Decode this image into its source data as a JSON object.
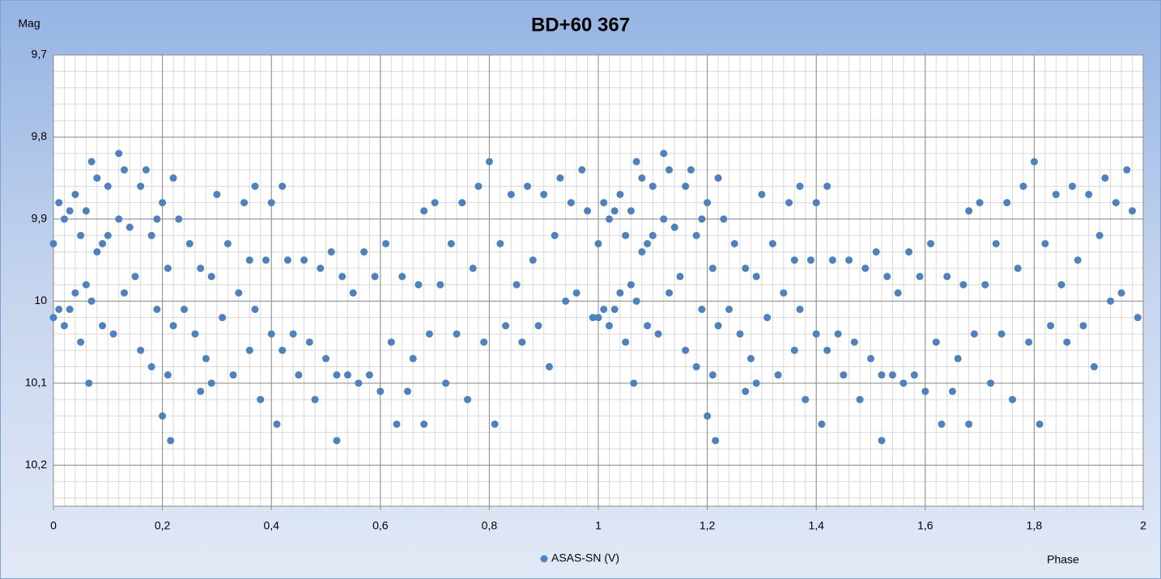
{
  "chart_data": {
    "type": "scatter",
    "title": "BD+60 367",
    "y_label": "Mag",
    "x_label": "Phase",
    "xlim": [
      0,
      2
    ],
    "ylim": [
      9.7,
      10.25
    ],
    "y_inverted": true,
    "xticks": [
      0,
      {
        "value": 0.2,
        "label": "0,2"
      },
      {
        "value": 0.4,
        "label": "0,4"
      },
      {
        "value": 0.6,
        "label": "0,6"
      },
      {
        "value": 0.8,
        "label": "0,8"
      },
      1,
      {
        "value": 1.2,
        "label": "1,2"
      },
      {
        "value": 1.4,
        "label": "1,4"
      },
      {
        "value": 1.6,
        "label": "1,6"
      },
      {
        "value": 1.8,
        "label": "1,8"
      },
      2
    ],
    "yticks": [
      {
        "value": 9.7,
        "label": "9,7"
      },
      {
        "value": 9.8,
        "label": "9,8"
      },
      {
        "value": 9.9,
        "label": "9,9"
      },
      10,
      {
        "value": 10.1,
        "label": "10,1"
      },
      {
        "value": 10.2,
        "label": "10,2"
      }
    ],
    "grid": true,
    "minor_grid": {
      "x": 0.02,
      "y": 0.02
    },
    "legend": "bottom",
    "series": [
      {
        "name": "ASAS-SN (V)",
        "color": "#4f81bd",
        "x": [
          0,
          0,
          0.01,
          0.01,
          0.02,
          0.02,
          0.03,
          0.03,
          0.04,
          0.04,
          0.05,
          0.05,
          0.06,
          0.06,
          0.065,
          0.07,
          0.07,
          0.08,
          0.08,
          0.09,
          0.09,
          0.1,
          0.1,
          0.11,
          0.12,
          0.12,
          0.13,
          0.13,
          0.14,
          0.15,
          0.16,
          0.16,
          0.17,
          0.18,
          0.18,
          0.19,
          0.19,
          0.2,
          0.2,
          0.21,
          0.21,
          0.215,
          0.22,
          0.22,
          0.23,
          0.24,
          0.25,
          0.26,
          0.27,
          0.27,
          0.28,
          0.29,
          0.29,
          0.3,
          0.31,
          0.32,
          0.33,
          0.34,
          0.35,
          0.36,
          0.36,
          0.37,
          0.37,
          0.38,
          0.39,
          0.4,
          0.4,
          0.41,
          0.42,
          0.42,
          0.43,
          0.44,
          0.45,
          0.46,
          0.47,
          0.48,
          0.49,
          0.5,
          0.51,
          0.52,
          0.52,
          0.53,
          0.54,
          0.55,
          0.56,
          0.57,
          0.58,
          0.59,
          0.6,
          0.61,
          0.62,
          0.63,
          0.64,
          0.65,
          0.66,
          0.67,
          0.68,
          0.68,
          0.69,
          0.7,
          0.71,
          0.72,
          0.73,
          0.74,
          0.75,
          0.76,
          0.77,
          0.78,
          0.79,
          0.8,
          0.81,
          0.82,
          0.83,
          0.84,
          0.85,
          0.86,
          0.87,
          0.88,
          0.89,
          0.9,
          0.91,
          0.92,
          0.93,
          0.94,
          0.95,
          0.96,
          0.97,
          0.98,
          0.99,
          1,
          1,
          1.01,
          1.01,
          1.02,
          1.02,
          1.03,
          1.03,
          1.04,
          1.04,
          1.05,
          1.05,
          1.06,
          1.06,
          1.065,
          1.07,
          1.07,
          1.08,
          1.08,
          1.09,
          1.09,
          1.1,
          1.1,
          1.11,
          1.12,
          1.12,
          1.13,
          1.13,
          1.14,
          1.15,
          1.16,
          1.16,
          1.17,
          1.18,
          1.18,
          1.19,
          1.19,
          1.2,
          1.2,
          1.21,
          1.21,
          1.215,
          1.22,
          1.22,
          1.23,
          1.24,
          1.25,
          1.26,
          1.27,
          1.27,
          1.28,
          1.29,
          1.29,
          1.3,
          1.31,
          1.32,
          1.33,
          1.34,
          1.35,
          1.36,
          1.36,
          1.37,
          1.37,
          1.38,
          1.39,
          1.4,
          1.4,
          1.41,
          1.42,
          1.42,
          1.43,
          1.44,
          1.45,
          1.46,
          1.47,
          1.48,
          1.49,
          1.5,
          1.51,
          1.52,
          1.52,
          1.53,
          1.54,
          1.55,
          1.56,
          1.57,
          1.58,
          1.59,
          1.6,
          1.61,
          1.62,
          1.63,
          1.64,
          1.65,
          1.66,
          1.67,
          1.68,
          1.68,
          1.69,
          1.7,
          1.71,
          1.72,
          1.73,
          1.74,
          1.75,
          1.76,
          1.77,
          1.78,
          1.79,
          1.8,
          1.81,
          1.82,
          1.83,
          1.84,
          1.85,
          1.86,
          1.87,
          1.88,
          1.89,
          1.9,
          1.91,
          1.92,
          1.93,
          1.94,
          1.95,
          1.96,
          1.97,
          1.98,
          1.99
        ],
        "values": [
          9.93,
          10.02,
          9.88,
          10.01,
          9.9,
          10.03,
          9.89,
          10.01,
          9.87,
          9.99,
          9.92,
          10.05,
          9.89,
          9.98,
          10.1,
          9.83,
          10,
          9.85,
          9.94,
          9.93,
          10.03,
          9.86,
          9.92,
          10.04,
          9.82,
          9.9,
          9.84,
          9.99,
          9.91,
          9.97,
          9.86,
          10.06,
          9.84,
          9.92,
          10.08,
          9.9,
          10.01,
          9.88,
          10.14,
          9.96,
          10.09,
          10.17,
          9.85,
          10.03,
          9.9,
          10.01,
          9.93,
          10.04,
          9.96,
          10.11,
          10.07,
          9.97,
          10.1,
          9.87,
          10.02,
          9.93,
          10.09,
          9.99,
          9.88,
          9.95,
          10.06,
          9.86,
          10.01,
          10.12,
          9.95,
          9.88,
          10.04,
          10.15,
          9.86,
          10.06,
          9.95,
          10.04,
          10.09,
          9.95,
          10.05,
          10.12,
          9.96,
          10.07,
          9.94,
          10.17,
          10.09,
          9.97,
          10.09,
          9.99,
          10.1,
          9.94,
          10.09,
          9.97,
          10.11,
          9.93,
          10.05,
          10.15,
          9.97,
          10.11,
          10.07,
          9.98,
          9.89,
          10.15,
          10.04,
          9.88,
          9.98,
          10.1,
          9.93,
          10.04,
          9.88,
          10.12,
          9.96,
          9.86,
          10.05,
          9.83,
          10.15,
          9.93,
          10.03,
          9.87,
          9.98,
          10.05,
          9.86,
          9.95,
          10.03,
          9.87,
          10.08,
          9.92,
          9.85,
          10,
          9.88,
          9.99,
          9.84,
          9.89,
          10.02,
          9.93,
          10.02,
          9.88,
          10.01,
          9.9,
          10.03,
          9.89,
          10.01,
          9.87,
          9.99,
          9.92,
          10.05,
          9.89,
          9.98,
          10.1,
          9.83,
          10,
          9.85,
          9.94,
          9.93,
          10.03,
          9.86,
          9.92,
          10.04,
          9.82,
          9.9,
          9.84,
          9.99,
          9.91,
          9.97,
          9.86,
          10.06,
          9.84,
          9.92,
          10.08,
          9.9,
          10.01,
          9.88,
          10.14,
          9.96,
          10.09,
          10.17,
          9.85,
          10.03,
          9.9,
          10.01,
          9.93,
          10.04,
          9.96,
          10.11,
          10.07,
          9.97,
          10.1,
          9.87,
          10.02,
          9.93,
          10.09,
          9.99,
          9.88,
          9.95,
          10.06,
          9.86,
          10.01,
          10.12,
          9.95,
          9.88,
          10.04,
          10.15,
          9.86,
          10.06,
          9.95,
          10.04,
          10.09,
          9.95,
          10.05,
          10.12,
          9.96,
          10.07,
          9.94,
          10.17,
          10.09,
          9.97,
          10.09,
          9.99,
          10.1,
          9.94,
          10.09,
          9.97,
          10.11,
          9.93,
          10.05,
          10.15,
          9.97,
          10.11,
          10.07,
          9.98,
          9.89,
          10.15,
          10.04,
          9.88,
          9.98,
          10.1,
          9.93,
          10.04,
          9.88,
          10.12,
          9.96,
          9.86,
          10.05,
          9.83,
          10.15,
          9.93,
          10.03,
          9.87,
          9.98,
          10.05,
          9.86,
          9.95,
          10.03,
          9.87,
          10.08,
          9.92,
          9.85,
          10,
          9.88,
          9.99,
          9.84,
          9.89,
          10.02
        ]
      }
    ]
  }
}
